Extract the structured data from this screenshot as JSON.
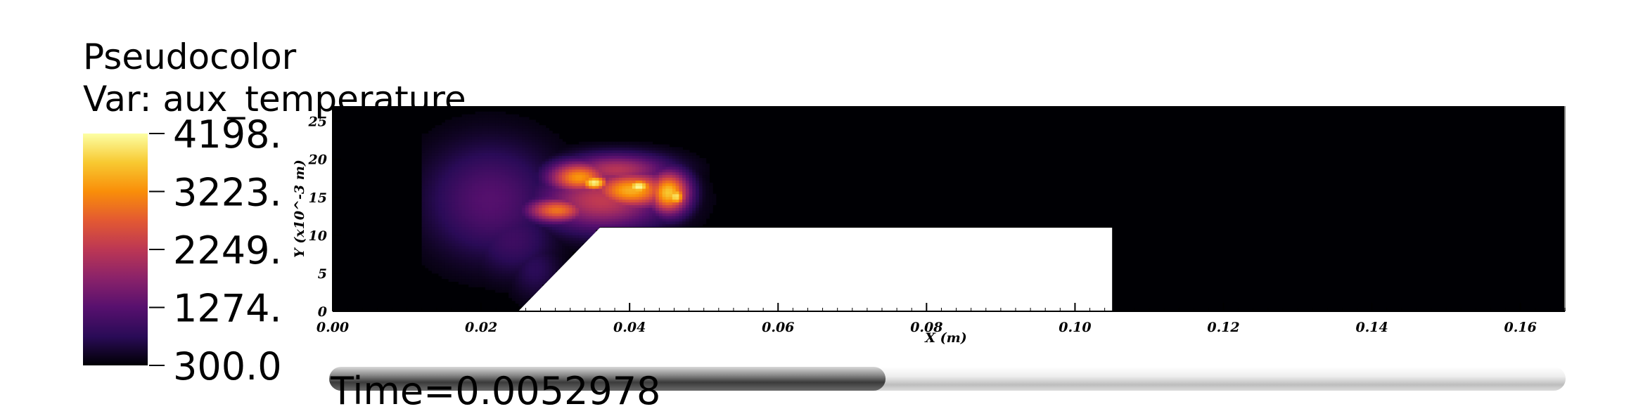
{
  "legend": {
    "title": "Pseudocolor",
    "var_label": "Var: aux_temperature",
    "ticks": [
      "4198.",
      "3223.",
      "2249.",
      "1274.",
      "300.0"
    ],
    "tick_values": [
      4198,
      3223,
      2249,
      1274,
      300
    ],
    "colormap": [
      "#000004",
      "#2a0b57",
      "#57106e",
      "#8a226a",
      "#bc3754",
      "#e35932",
      "#f98e09",
      "#f8c931",
      "#fcffa4"
    ]
  },
  "time": {
    "label": "Time=0.0052978",
    "progress": 0.45
  },
  "chart_data": {
    "type": "heatmap",
    "variable": "aux_temperature",
    "xlabel": "X (m)",
    "ylabel": "Y (x10^-3 m)",
    "xlim": [
      0,
      0.166
    ],
    "ylim": [
      0,
      27
    ],
    "x_ticks": [
      "0.00",
      "0.02",
      "0.04",
      "0.06",
      "0.08",
      "0.10",
      "0.12",
      "0.14",
      "0.16"
    ],
    "x_tick_values": [
      0,
      0.02,
      0.04,
      0.06,
      0.08,
      0.1,
      0.12,
      0.14,
      0.16
    ],
    "y_ticks": [
      "0",
      "5",
      "10",
      "15",
      "20",
      "25"
    ],
    "y_tick_values": [
      0,
      5,
      10,
      15,
      20,
      25
    ],
    "value_range": [
      300,
      4198
    ],
    "background_value": 300,
    "obstacle": {
      "ramp_start": [
        0.025,
        0
      ],
      "ramp_top": [
        0.036,
        11
      ],
      "top_end": [
        0.105,
        11
      ],
      "bottom_end": [
        0.105,
        0
      ]
    },
    "hot_regions": [
      {
        "x": 0.021,
        "y": 14.5,
        "sx": 0.006,
        "sy": 5.2,
        "value": 1250
      },
      {
        "x": 0.024,
        "y": 9.5,
        "sx": 0.004,
        "sy": 3.5,
        "value": 1000
      },
      {
        "x": 0.027,
        "y": 5.5,
        "sx": 0.0025,
        "sy": 2.8,
        "value": 800
      },
      {
        "x": 0.036,
        "y": 14.5,
        "sx": 0.006,
        "sy": 2.8,
        "value": 2300
      },
      {
        "x": 0.04,
        "y": 15.8,
        "sx": 0.004,
        "sy": 1.8,
        "value": 3500
      },
      {
        "x": 0.033,
        "y": 17.5,
        "sx": 0.003,
        "sy": 1.5,
        "value": 3300
      },
      {
        "x": 0.045,
        "y": 15.5,
        "sx": 0.002,
        "sy": 2.0,
        "value": 3700
      },
      {
        "x": 0.03,
        "y": 13.2,
        "sx": 0.003,
        "sy": 1.2,
        "value": 3000
      },
      {
        "x": 0.038,
        "y": 18.5,
        "sx": 0.005,
        "sy": 1.5,
        "value": 2200
      },
      {
        "x": 0.041,
        "y": 16.3,
        "sx": 0.0015,
        "sy": 0.8,
        "value": 4198
      },
      {
        "x": 0.035,
        "y": 16.8,
        "sx": 0.0015,
        "sy": 0.8,
        "value": 4100
      },
      {
        "x": 0.046,
        "y": 15.0,
        "sx": 0.001,
        "sy": 1.0,
        "value": 4000
      }
    ]
  }
}
